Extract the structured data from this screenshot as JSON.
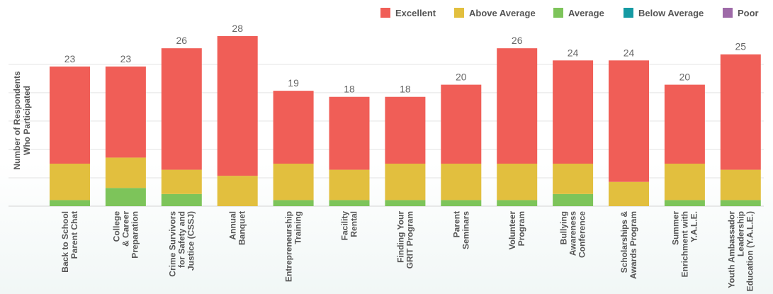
{
  "chart_data": {
    "type": "bar",
    "stacked": true,
    "ylabel": [
      "Number of Respondents",
      "Who Participated"
    ],
    "ylim": [
      0,
      28
    ],
    "grid": true,
    "legend_position": "top-right",
    "categories": [
      [
        "Back to School",
        "Parent Chat"
      ],
      [
        "College",
        "& Career",
        "Preparation"
      ],
      [
        "Crime Survivors",
        "for Safety and",
        "Justice (CSSJ)"
      ],
      [
        "Annual",
        "Banquet"
      ],
      [
        "Entrepreneurship",
        "Training"
      ],
      [
        "Facility",
        "Rental"
      ],
      [
        "Finding Your",
        "GRIT Program"
      ],
      [
        "Parent",
        "Seminars"
      ],
      [
        "Volunteer",
        "Program"
      ],
      [
        "Bullying",
        "Awareness",
        "Conference"
      ],
      [
        "Scholarships &",
        "Awards Program"
      ],
      [
        "Summer",
        "Enrichment with",
        "Y.A.L.E."
      ],
      [
        "Youth Ambassador",
        "Leadership",
        "Education (Y.A.L.E.)"
      ]
    ],
    "totals": [
      "23",
      "23",
      "26",
      "28",
      "19",
      "18",
      "18",
      "20",
      "26",
      "24",
      "24",
      "20",
      "25"
    ],
    "series": [
      {
        "name": "Average",
        "color": "#7dc45a",
        "values": [
          1,
          3,
          2,
          0,
          1,
          1,
          1,
          1,
          1,
          2,
          0,
          1,
          1
        ]
      },
      {
        "name": "Above Average",
        "color": "#e2bf3e",
        "values": [
          6,
          5,
          4,
          5,
          6,
          5,
          6,
          6,
          6,
          5,
          4,
          6,
          5
        ]
      },
      {
        "name": "Excellent",
        "color": "#f05e57",
        "values": [
          16,
          15,
          20,
          23,
          12,
          12,
          11,
          13,
          19,
          17,
          20,
          13,
          19
        ]
      },
      {
        "name": "Below Average",
        "color": "#159aa3",
        "values": [
          0,
          0,
          0,
          0,
          0,
          0,
          0,
          0,
          0,
          0,
          0,
          0,
          0
        ]
      },
      {
        "name": "Poor",
        "color": "#9e6aa8",
        "values": [
          0,
          0,
          0,
          0,
          0,
          0,
          0,
          0,
          0,
          0,
          0,
          0,
          0
        ]
      }
    ],
    "legend": [
      {
        "name": "Excellent",
        "color": "#f05e57"
      },
      {
        "name": "Above Average",
        "color": "#e2bf3e"
      },
      {
        "name": "Average",
        "color": "#7dc45a"
      },
      {
        "name": "Below Average",
        "color": "#159aa3"
      },
      {
        "name": "Poor",
        "color": "#9e6aa8"
      }
    ]
  }
}
